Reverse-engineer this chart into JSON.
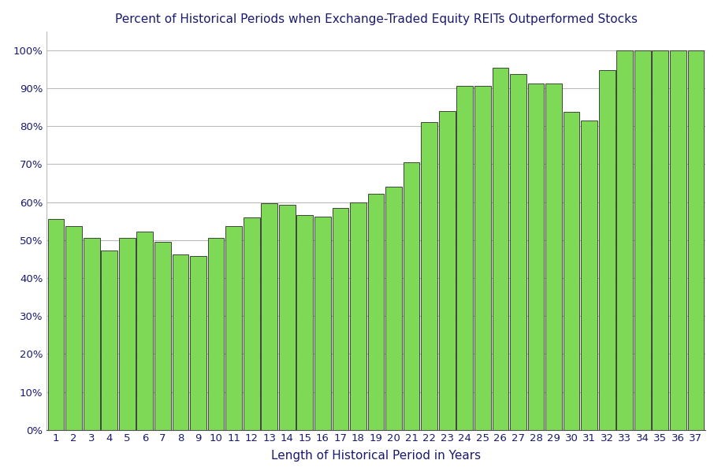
{
  "title": "Percent of Historical Periods when Exchange-Traded Equity REITs Outperformed Stocks",
  "xlabel": "Length of Historical Period in Years",
  "categories": [
    1,
    2,
    3,
    4,
    5,
    6,
    7,
    8,
    9,
    10,
    11,
    12,
    13,
    14,
    15,
    16,
    17,
    18,
    19,
    20,
    21,
    22,
    23,
    24,
    25,
    26,
    27,
    28,
    29,
    30,
    31,
    32,
    33,
    34,
    35,
    36,
    37
  ],
  "values": [
    0.556,
    0.538,
    0.505,
    0.472,
    0.505,
    0.523,
    0.495,
    0.463,
    0.459,
    0.505,
    0.537,
    0.559,
    0.597,
    0.594,
    0.566,
    0.562,
    0.585,
    0.6,
    0.622,
    0.64,
    0.706,
    0.81,
    0.84,
    0.906,
    0.906,
    0.955,
    0.937,
    0.912,
    0.912,
    0.838,
    0.816,
    0.947,
    1.0,
    1.0,
    1.0,
    1.0,
    1.0
  ],
  "bar_color": "#7ED957",
  "bar_edge_color": "#2A2A2A",
  "background_color": "#FFFFFF",
  "plot_bg_color": "#FFFFFF",
  "grid_color": "#BBBBBB",
  "title_color": "#1A1A6E",
  "axis_label_color": "#1A1A6E",
  "tick_color": "#1A1A6E",
  "spine_color": "#555555",
  "ylim": [
    0,
    1.05
  ],
  "yticks": [
    0.0,
    0.1,
    0.2,
    0.3,
    0.4,
    0.5,
    0.6,
    0.7,
    0.8,
    0.9,
    1.0
  ],
  "title_fontsize": 11,
  "axis_label_fontsize": 11,
  "tick_fontsize": 9.5,
  "bar_linewidth": 0.6,
  "bar_width": 0.92
}
